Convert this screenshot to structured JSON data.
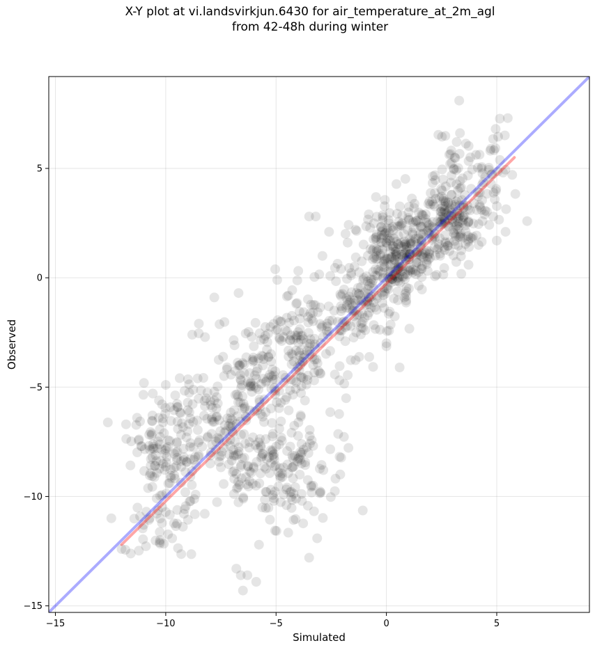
{
  "chart_data": {
    "type": "scatter",
    "title_line1": "X-Y plot at vi.landsvirkjun.6430 for air_temperature_at_2m_agl",
    "title_line2": "from 42-48h during winter",
    "xlabel": "Simulated",
    "ylabel": "Observed",
    "xlim": [
      -15.3,
      9.2
    ],
    "ylim": [
      -15.3,
      9.2
    ],
    "xticks": [
      -15,
      -10,
      -5,
      0,
      5
    ],
    "yticks": [
      -15,
      -10,
      -5,
      0,
      5
    ],
    "xtick_labels": [
      "−15",
      "−10",
      "−5",
      "0",
      "5"
    ],
    "ytick_labels": [
      "−15",
      "−10",
      "−5",
      "0",
      "5"
    ],
    "grid": true,
    "point_color": "#000000",
    "point_opacity": 0.1,
    "identity_line": {
      "color": "#0000ff",
      "x": [
        -15.3,
        9.2
      ],
      "y": [
        -15.3,
        9.2
      ]
    },
    "fit_line": {
      "color": "#ff0000",
      "x": [
        -12.0,
        5.8
      ],
      "y": [
        -12.2,
        5.5
      ]
    },
    "clusters": [
      {
        "cx": 0.5,
        "cy": 1.2,
        "sx": 0.9,
        "sy": 0.9,
        "n": 260
      },
      {
        "cx": 2.8,
        "cy": 2.6,
        "sx": 0.9,
        "sy": 1.0,
        "n": 180
      },
      {
        "cx": 4.0,
        "cy": 4.8,
        "sx": 1.0,
        "sy": 1.1,
        "n": 80
      },
      {
        "cx": -1.2,
        "cy": -1.2,
        "sx": 0.9,
        "sy": 1.0,
        "n": 120
      },
      {
        "cx": -3.5,
        "cy": -3.0,
        "sx": 1.1,
        "sy": 1.3,
        "n": 130
      },
      {
        "cx": -5.8,
        "cy": -4.2,
        "sx": 1.0,
        "sy": 1.2,
        "n": 100
      },
      {
        "cx": -7.0,
        "cy": -7.0,
        "sx": 1.5,
        "sy": 1.6,
        "n": 170
      },
      {
        "cx": -9.8,
        "cy": -8.0,
        "sx": 0.9,
        "sy": 1.3,
        "n": 130
      },
      {
        "cx": -4.5,
        "cy": -8.8,
        "sx": 1.3,
        "sy": 1.5,
        "n": 140
      },
      {
        "cx": -10.5,
        "cy": -11.3,
        "sx": 0.8,
        "sy": 0.9,
        "n": 40
      }
    ],
    "extra_points": [
      [
        -6.6,
        -13.6
      ],
      [
        -6.3,
        -13.6
      ],
      [
        -6.5,
        -14.3
      ],
      [
        -5.9,
        -13.9
      ],
      [
        -6.8,
        -13.3
      ],
      [
        -3.5,
        -12.8
      ],
      [
        3.3,
        8.1
      ],
      [
        5.5,
        7.3
      ],
      [
        -3.5,
        2.8
      ],
      [
        -3.2,
        2.8
      ],
      [
        -2.6,
        2.1
      ],
      [
        -1.4,
        2.2
      ],
      [
        -7.8,
        -0.9
      ],
      [
        -6.7,
        -0.7
      ],
      [
        -2.9,
        1.0
      ],
      [
        -12.0,
        -12.4
      ],
      [
        -11.8,
        -6.7
      ],
      [
        -11.3,
        -6.4
      ],
      [
        -8.5,
        -2.1
      ],
      [
        -8.8,
        -2.6
      ],
      [
        0.6,
        -4.1
      ],
      [
        -10.0,
        -4.9
      ],
      [
        5.0,
        1.7
      ],
      [
        5.4,
        2.1
      ],
      [
        -0.8,
        2.9
      ]
    ]
  }
}
